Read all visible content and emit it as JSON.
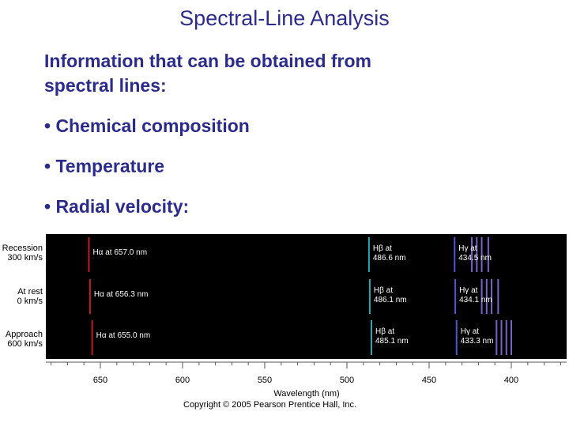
{
  "slide": {
    "title": "Spectral-Line Analysis",
    "intro_line1": "Information that can be obtained from",
    "intro_line2": "spectral lines:",
    "bullets": [
      "• Chemical composition",
      "• Temperature",
      "• Radial velocity:"
    ]
  },
  "figure": {
    "rows": [
      {
        "label_line1": "Recession",
        "label_line2": "300 km/s",
        "ha": "Hα at 657.0 nm",
        "hb_line1": "Hβ at",
        "hb_line2": "486.6 nm",
        "hg_line1": "Hγ at",
        "hg_line2": "434.5 nm",
        "ha_nm": 657.0,
        "hb_nm": 486.6,
        "hg_nm": 434.5,
        "extra_nm": [
          424.0,
          421.0,
          418.0,
          414.0
        ]
      },
      {
        "label_line1": "At rest",
        "label_line2": "0 km/s",
        "ha": "Hα at 656.3 nm",
        "hb_line1": "Hβ at",
        "hb_line2": "486.1 nm",
        "hg_line1": "Hγ at",
        "hg_line2": "434.1 nm",
        "ha_nm": 656.3,
        "hb_nm": 486.1,
        "hg_nm": 434.1,
        "extra_nm": [
          418.0,
          415.0,
          412.0,
          408.0
        ]
      },
      {
        "label_line1": "Approach",
        "label_line2": "600 km/s",
        "ha": "Hα at 655.0 nm",
        "hb_line1": "Hβ at",
        "hb_line2": "485.1 nm",
        "hg_line1": "Hγ at",
        "hg_line2": "433.3 nm",
        "ha_nm": 655.0,
        "hb_nm": 485.1,
        "hg_nm": 433.3,
        "extra_nm": [
          409.0,
          406.0,
          403.0,
          400.0
        ]
      }
    ],
    "axis_ticks": [
      "650",
      "600",
      "550",
      "500",
      "450",
      "400"
    ],
    "axis_tick_values": [
      650,
      600,
      550,
      500,
      450,
      400
    ],
    "axis_label": "Wavelength (nm)",
    "copyright": "Copyright © 2005 Pearson Prentice Hall, Inc.",
    "colors": {
      "ha": "#c21a2a",
      "hb": "#2aa9b0",
      "hg": "#4a58d8",
      "extra": "#7a62c8",
      "band": "#000000"
    }
  }
}
